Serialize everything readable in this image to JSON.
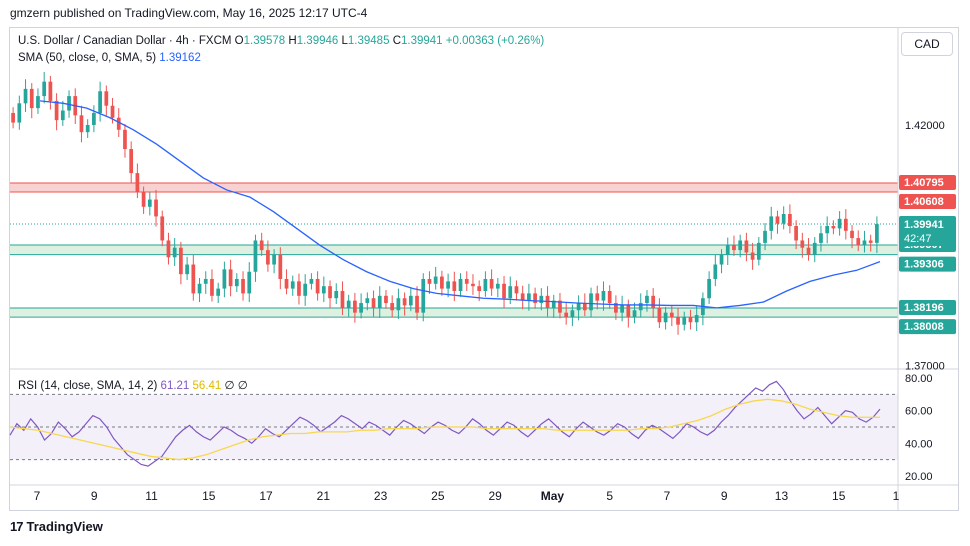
{
  "header": "gmzern published on TradingView.com, May 16, 2025 12:17 UTC-4",
  "footer_brand": "TradingView",
  "currency_button": "CAD",
  "legend": {
    "symbol": "U.S. Dollar / Canadian Dollar · 4h · FXCM",
    "o_label": "O",
    "o": "1.39578",
    "h_label": "H",
    "h": "1.39946",
    "l_label": "L",
    "l": "1.39485",
    "c_label": "C",
    "c": "1.39941",
    "change": "+0.00363 (+0.26%)",
    "sma": "SMA (50, close, 0, SMA, 5)",
    "sma_value": "1.39162",
    "rsi": "RSI (14, close, SMA, 14, 2)",
    "rsi_value": "61.21",
    "rsi_ma_value": "56.41",
    "rsi_extra1": "∅",
    "rsi_extra2": "∅"
  },
  "colors": {
    "up": "#26a69a",
    "down": "#ef5350",
    "sma": "#2962ff",
    "rsi": "#7e57c2",
    "rsi_ma": "#f7d74f",
    "resistance_zone": "#f7b3b3",
    "support_zone": "#c8e6c9"
  },
  "chart_data": {
    "type": "candlestick",
    "price_axis": {
      "ticks": [
        "1.42000",
        "1.37000"
      ],
      "range": [
        1.3695,
        1.4335
      ]
    },
    "x_ticks": [
      "7",
      "9",
      "11",
      "15",
      "17",
      "21",
      "23",
      "25",
      "29",
      "May",
      "5",
      "7",
      "9",
      "13",
      "15",
      "1"
    ],
    "zones": [
      {
        "name": "resistance",
        "top": 1.40795,
        "bottom": 1.40608,
        "top_label": "1.40795",
        "bottom_label": "1.40608"
      },
      {
        "name": "support-upper",
        "top": 1.39507,
        "bottom": 1.39306,
        "top_label": "1.39507",
        "bottom_label": "1.39306"
      },
      {
        "name": "support-lower",
        "top": 1.38196,
        "bottom": 1.38008,
        "top_label": "1.38196",
        "bottom_label": "1.38008"
      }
    ],
    "last_price": {
      "value": 1.39941,
      "label": "1.39941",
      "countdown": "42:47"
    },
    "candles_close": [
      1.4205,
      1.4245,
      1.4275,
      1.4235,
      1.426,
      1.429,
      1.425,
      1.421,
      1.423,
      1.426,
      1.422,
      1.4185,
      1.42,
      1.4225,
      1.427,
      1.424,
      1.4215,
      1.419,
      1.415,
      1.41,
      1.406,
      1.403,
      1.4045,
      1.401,
      1.396,
      1.3925,
      1.3945,
      1.389,
      1.391,
      1.385,
      1.387,
      1.388,
      1.3845,
      1.386,
      1.39,
      1.3865,
      1.388,
      1.385,
      1.3895,
      1.396,
      1.394,
      1.391,
      1.393,
      1.388,
      1.386,
      1.3875,
      1.3845,
      1.387,
      1.388,
      1.385,
      1.3865,
      1.384,
      1.3855,
      1.382,
      1.3835,
      1.381,
      1.383,
      1.384,
      1.382,
      1.3845,
      1.383,
      1.3815,
      1.384,
      1.3825,
      1.3845,
      1.381,
      1.388,
      1.387,
      1.3885,
      1.386,
      1.3875,
      1.3855,
      1.388,
      1.387,
      1.3865,
      1.3855,
      1.388,
      1.386,
      1.387,
      1.384,
      1.3865,
      1.385,
      1.3835,
      1.385,
      1.383,
      1.3845,
      1.382,
      1.3835,
      1.381,
      1.38,
      1.3815,
      1.383,
      1.3815,
      1.385,
      1.3835,
      1.3855,
      1.383,
      1.381,
      1.3825,
      1.38,
      1.3815,
      1.383,
      1.3845,
      1.382,
      1.379,
      1.381,
      1.38,
      1.3785,
      1.38,
      1.379,
      1.3805,
      1.384,
      1.388,
      1.391,
      1.393,
      1.395,
      1.394,
      1.396,
      1.3935,
      1.392,
      1.3955,
      1.398,
      1.401,
      1.3995,
      1.4015,
      1.399,
      1.396,
      1.3945,
      1.393,
      1.3955,
      1.3975,
      1.399,
      1.3985,
      1.4005,
      1.398,
      1.3965,
      1.395,
      1.396,
      1.3955,
      1.3994
    ],
    "sma_values": [
      1.425,
      1.4245,
      1.4235,
      1.4215,
      1.419,
      1.416,
      1.4125,
      1.409,
      1.4065,
      1.405,
      1.402,
      1.3985,
      1.395,
      1.392,
      1.3895,
      1.3875,
      1.386,
      1.385,
      1.3845,
      1.384,
      1.3838,
      1.3835,
      1.3833,
      1.383,
      1.3828,
      1.3826,
      1.3826,
      1.3825,
      1.3825,
      1.382,
      1.3825,
      1.3832,
      1.3855,
      1.3875,
      1.3888,
      1.3898,
      1.3916
    ],
    "rsi": {
      "ticks": [
        "80.00",
        "60.00",
        "40.00",
        "20.00"
      ],
      "range": [
        15,
        85
      ],
      "upper": 70,
      "middle": 50,
      "lower": 30
    },
    "rsi_values": [
      45,
      52,
      48,
      55,
      50,
      42,
      46,
      53,
      49,
      44,
      47,
      52,
      57,
      55,
      50,
      43,
      38,
      33,
      30,
      27,
      26,
      29,
      32,
      38,
      44,
      48,
      51,
      47,
      44,
      42,
      46,
      50,
      48,
      45,
      43,
      40,
      44,
      49,
      46,
      44,
      48,
      52,
      56,
      54,
      51,
      47,
      50,
      53,
      57,
      55,
      52,
      49,
      53,
      51,
      48,
      45,
      50,
      54,
      52,
      49,
      46,
      50,
      53,
      51,
      48,
      46,
      50,
      55,
      52,
      48,
      45,
      49,
      53,
      51,
      47,
      44,
      48,
      52,
      55,
      51,
      47,
      44,
      49,
      53,
      50,
      47,
      45,
      48,
      52,
      50,
      46,
      43,
      48,
      51,
      49,
      46,
      43,
      47,
      52,
      50,
      47,
      45,
      48,
      53,
      57,
      62,
      66,
      70,
      74,
      72,
      76,
      78,
      73,
      66,
      60,
      55,
      58,
      62,
      57,
      52,
      56,
      60,
      59,
      55,
      53,
      56,
      61
    ],
    "rsi_ma_values": [
      50,
      49,
      48,
      46,
      44,
      42,
      40,
      38,
      36,
      34,
      32,
      31,
      30,
      31,
      33,
      36,
      39,
      42,
      44,
      45,
      46,
      46,
      47,
      47,
      47,
      48,
      48,
      49,
      49,
      49,
      50,
      50,
      50,
      50,
      49,
      49,
      49,
      49,
      49,
      48,
      48,
      48,
      48,
      48,
      48,
      49,
      49,
      50,
      52,
      54,
      57,
      61,
      64,
      66,
      67,
      66,
      64,
      61,
      59,
      57,
      56,
      56,
      56
    ]
  }
}
